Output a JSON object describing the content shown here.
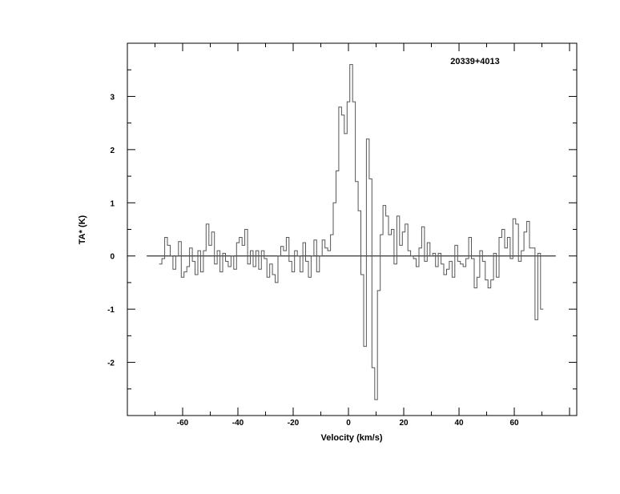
{
  "chart_data": {
    "type": "line",
    "style": "step",
    "title": "20339+4013",
    "xlabel": "Velocity (km/s)",
    "ylabel": "TA* (K)",
    "xlim": [
      -80,
      82.6
    ],
    "ylim": [
      -3.0,
      4.0
    ],
    "xticks": [
      -60,
      -40,
      -20,
      0,
      20,
      40,
      60
    ],
    "yticks": [
      -2,
      -1,
      0,
      1,
      2,
      3
    ],
    "grid": false,
    "baseline": 0,
    "line_color": "#555555",
    "series": [
      {
        "x": [
          -68,
          -67,
          -66,
          -65,
          -64,
          -63,
          -62,
          -61,
          -60,
          -59,
          -58,
          -57,
          -56,
          -55,
          -54,
          -53,
          -52,
          -51,
          -50,
          -49,
          -48,
          -47,
          -46,
          -45,
          -44,
          -43,
          -42,
          -41,
          -40,
          -39,
          -38,
          -37,
          -36,
          -35,
          -34,
          -33,
          -32,
          -31,
          -30,
          -29,
          -28,
          -27,
          -26,
          -25,
          -24,
          -23,
          -22,
          -21,
          -20,
          -19,
          -18,
          -17,
          -16,
          -15,
          -14,
          -13,
          -12,
          -11,
          -10,
          -9,
          -8,
          -7,
          -6,
          -5,
          -4,
          -3,
          -2,
          -1,
          0,
          1,
          2,
          3,
          4,
          5,
          6,
          7,
          8,
          9,
          10,
          11,
          12,
          13,
          14,
          15,
          16,
          17,
          18,
          19,
          20,
          21,
          22,
          23,
          24,
          25,
          26,
          27,
          28,
          29,
          30,
          31,
          32,
          33,
          34,
          35,
          36,
          37,
          38,
          39,
          40,
          41,
          42,
          43,
          44,
          45,
          46,
          47,
          48,
          49,
          50,
          51,
          52,
          53,
          54,
          55,
          56,
          57,
          58,
          59,
          60,
          61,
          62,
          63,
          64,
          65,
          66,
          67,
          68,
          69,
          70
        ],
        "y": [
          -0.15,
          -0.05,
          0.35,
          0.2,
          0.0,
          -0.25,
          0.0,
          0.27,
          -0.4,
          -0.3,
          -0.2,
          0.15,
          -0.1,
          -0.35,
          0.1,
          -0.3,
          0.1,
          0.6,
          0.2,
          0.45,
          -0.15,
          0.1,
          -0.3,
          0.05,
          -0.1,
          -0.2,
          0.0,
          -0.25,
          0.25,
          0.35,
          0.2,
          0.5,
          -0.15,
          0.1,
          -0.2,
          0.1,
          -0.25,
          0.1,
          -0.05,
          -0.4,
          -0.15,
          -0.35,
          -0.5,
          0.0,
          0.18,
          0.1,
          0.35,
          -0.1,
          -0.3,
          0.1,
          0.0,
          -0.3,
          0.25,
          -0.1,
          -0.4,
          0.0,
          0.3,
          -0.3,
          0.0,
          0.3,
          0.15,
          0.1,
          0.4,
          1.0,
          1.6,
          2.8,
          2.65,
          2.3,
          2.9,
          3.6,
          2.9,
          1.4,
          0.85,
          -0.35,
          -1.7,
          2.2,
          1.45,
          -2.1,
          -2.7,
          -0.65,
          0.4,
          0.95,
          0.75,
          0.4,
          0.5,
          -0.15,
          0.75,
          0.2,
          0.45,
          0.6,
          0.1,
          0.0,
          -0.05,
          -0.2,
          0.15,
          0.55,
          -0.1,
          0.25,
          0.0,
          0.05,
          -0.2,
          0.05,
          -0.15,
          -0.35,
          -0.25,
          -0.1,
          -0.4,
          0.2,
          -0.1,
          -0.15,
          -0.2,
          -0.05,
          0.35,
          -0.05,
          -0.6,
          -0.4,
          0.1,
          -0.1,
          -0.45,
          -0.6,
          -0.45,
          0.05,
          -0.4,
          0.35,
          0.5,
          0.15,
          0.35,
          -0.05,
          0.7,
          0.6,
          -0.1,
          0.1,
          0.45,
          0.65,
          0.15,
          0.15,
          -1.2,
          0.05,
          -1.0
        ]
      }
    ]
  }
}
